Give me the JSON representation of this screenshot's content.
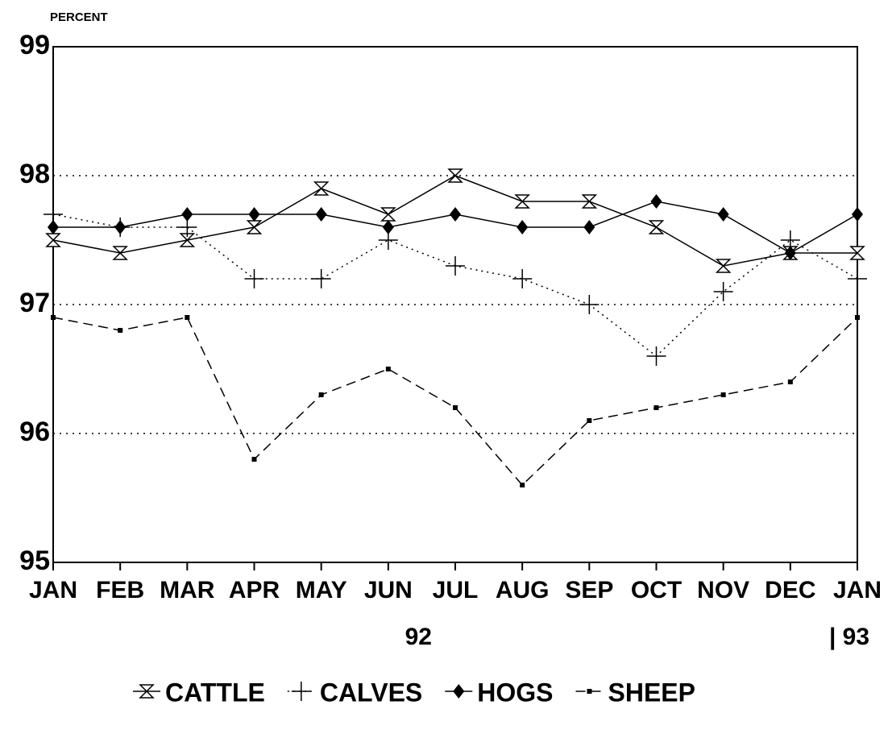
{
  "chart_data": {
    "type": "line",
    "y_label": "PERCENT",
    "categories": [
      "JAN",
      "FEB",
      "MAR",
      "APR",
      "MAY",
      "JUN",
      "JUL",
      "AUG",
      "SEP",
      "OCT",
      "NOV",
      "DEC",
      "JAN"
    ],
    "year_labels": [
      "92",
      "| 93"
    ],
    "ylim": [
      95,
      99
    ],
    "yticks": [
      95,
      96,
      97,
      98,
      99
    ],
    "grid": true,
    "legend": "bottom",
    "series": [
      {
        "name": "CATTLE",
        "color": "#000000",
        "marker": "hourglass",
        "dash": "solid",
        "values": [
          97.5,
          97.4,
          97.5,
          97.6,
          97.9,
          97.7,
          98.0,
          97.8,
          97.8,
          97.6,
          97.3,
          97.4,
          97.4
        ]
      },
      {
        "name": "CALVES",
        "color": "#000000",
        "marker": "plus",
        "dash": "dotted",
        "values": [
          97.7,
          97.6,
          97.6,
          97.2,
          97.2,
          97.5,
          97.3,
          97.2,
          97.0,
          96.6,
          97.1,
          97.5,
          97.2
        ]
      },
      {
        "name": "HOGS",
        "color": "#000000",
        "marker": "diamond",
        "dash": "solid",
        "values": [
          97.6,
          97.6,
          97.7,
          97.7,
          97.7,
          97.6,
          97.7,
          97.6,
          97.6,
          97.8,
          97.7,
          97.4,
          97.7
        ]
      },
      {
        "name": "SHEEP",
        "color": "#000000",
        "marker": "square",
        "dash": "dashed",
        "values": [
          96.9,
          96.8,
          96.9,
          95.8,
          96.3,
          96.5,
          96.2,
          95.6,
          96.1,
          96.2,
          96.3,
          96.4,
          96.9
        ]
      }
    ]
  }
}
